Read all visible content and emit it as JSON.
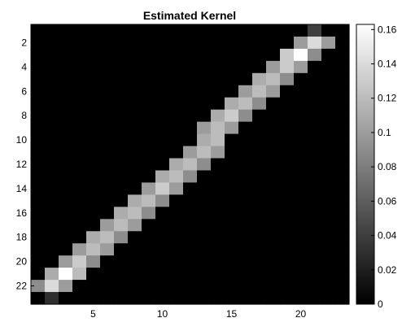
{
  "chart_data": {
    "type": "heatmap",
    "title": "Estimated Kernel",
    "xlabel": "",
    "ylabel": "",
    "x_range": [
      1,
      23
    ],
    "y_range": [
      1,
      23
    ],
    "y_direction": "top-to-bottom",
    "x_ticks": [
      5,
      10,
      15,
      20
    ],
    "y_ticks": [
      2,
      4,
      6,
      8,
      10,
      12,
      14,
      16,
      18,
      20,
      22
    ],
    "colormap": "gray",
    "color_range": [
      0,
      0.163
    ],
    "colorbar": {
      "position": "right",
      "ticks": [
        0,
        0.02,
        0.04,
        0.06,
        0.08,
        0.1,
        0.12,
        0.14,
        0.16
      ],
      "tick_labels": [
        "0",
        "0.02",
        "0.04",
        "0.06",
        "0.08",
        "0.1",
        "0.12",
        "0.14",
        "0.16"
      ]
    },
    "grid": false,
    "values": [
      [
        0,
        0,
        0,
        0,
        0,
        0,
        0,
        0,
        0,
        0,
        0,
        0,
        0,
        0,
        0,
        0,
        0,
        0,
        0,
        0,
        0.04,
        0,
        0
      ],
      [
        0,
        0,
        0,
        0,
        0,
        0,
        0,
        0,
        0,
        0,
        0,
        0,
        0,
        0,
        0,
        0,
        0,
        0,
        0,
        0.1,
        0.14,
        0.1,
        0
      ],
      [
        0,
        0,
        0,
        0,
        0,
        0,
        0,
        0,
        0,
        0,
        0,
        0,
        0,
        0,
        0,
        0,
        0,
        0,
        0.13,
        0.163,
        0.09,
        0,
        0
      ],
      [
        0,
        0,
        0,
        0,
        0,
        0,
        0,
        0,
        0,
        0,
        0,
        0,
        0,
        0,
        0,
        0,
        0,
        0.1,
        0.13,
        0.1,
        0,
        0,
        0
      ],
      [
        0,
        0,
        0,
        0,
        0,
        0,
        0,
        0,
        0,
        0,
        0,
        0,
        0,
        0,
        0,
        0,
        0.11,
        0.12,
        0.09,
        0,
        0,
        0,
        0
      ],
      [
        0,
        0,
        0,
        0,
        0,
        0,
        0,
        0,
        0,
        0,
        0,
        0,
        0,
        0,
        0,
        0.1,
        0.12,
        0.1,
        0,
        0,
        0,
        0,
        0
      ],
      [
        0,
        0,
        0,
        0,
        0,
        0,
        0,
        0,
        0,
        0,
        0,
        0,
        0,
        0,
        0.11,
        0.12,
        0.09,
        0,
        0,
        0,
        0,
        0,
        0
      ],
      [
        0,
        0,
        0,
        0,
        0,
        0,
        0,
        0,
        0,
        0,
        0,
        0,
        0,
        0.11,
        0.13,
        0.09,
        0,
        0,
        0,
        0,
        0,
        0,
        0
      ],
      [
        0,
        0,
        0,
        0,
        0,
        0,
        0,
        0,
        0,
        0,
        0,
        0,
        0.1,
        0.12,
        0.1,
        0,
        0,
        0,
        0,
        0,
        0,
        0,
        0
      ],
      [
        0,
        0,
        0,
        0,
        0,
        0,
        0,
        0,
        0,
        0,
        0,
        0,
        0.11,
        0.12,
        0,
        0,
        0,
        0,
        0,
        0,
        0,
        0,
        0
      ],
      [
        0,
        0,
        0,
        0,
        0,
        0,
        0,
        0,
        0,
        0,
        0,
        0.1,
        0.12,
        0.1,
        0,
        0,
        0,
        0,
        0,
        0,
        0,
        0,
        0
      ],
      [
        0,
        0,
        0,
        0,
        0,
        0,
        0,
        0,
        0,
        0,
        0.11,
        0.12,
        0.09,
        0,
        0,
        0,
        0,
        0,
        0,
        0,
        0,
        0,
        0
      ],
      [
        0,
        0,
        0,
        0,
        0,
        0,
        0,
        0,
        0,
        0.11,
        0.12,
        0.09,
        0,
        0,
        0,
        0,
        0,
        0,
        0,
        0,
        0,
        0,
        0
      ],
      [
        0,
        0,
        0,
        0,
        0,
        0,
        0,
        0,
        0.1,
        0.13,
        0.1,
        0,
        0,
        0,
        0,
        0,
        0,
        0,
        0,
        0,
        0,
        0,
        0
      ],
      [
        0,
        0,
        0,
        0,
        0,
        0,
        0,
        0.11,
        0.12,
        0.09,
        0,
        0,
        0,
        0,
        0,
        0,
        0,
        0,
        0,
        0,
        0,
        0,
        0
      ],
      [
        0,
        0,
        0,
        0,
        0,
        0,
        0.11,
        0.12,
        0.09,
        0,
        0,
        0,
        0,
        0,
        0,
        0,
        0,
        0,
        0,
        0,
        0,
        0,
        0
      ],
      [
        0,
        0,
        0,
        0,
        0,
        0.1,
        0.12,
        0.1,
        0,
        0,
        0,
        0,
        0,
        0,
        0,
        0,
        0,
        0,
        0,
        0,
        0,
        0,
        0
      ],
      [
        0,
        0,
        0,
        0,
        0.11,
        0.12,
        0.09,
        0,
        0,
        0,
        0,
        0,
        0,
        0,
        0,
        0,
        0,
        0,
        0,
        0,
        0,
        0,
        0
      ],
      [
        0,
        0,
        0,
        0.1,
        0.12,
        0.1,
        0,
        0,
        0,
        0,
        0,
        0,
        0,
        0,
        0,
        0,
        0,
        0,
        0,
        0,
        0,
        0,
        0
      ],
      [
        0,
        0,
        0.1,
        0.13,
        0.09,
        0,
        0,
        0,
        0,
        0,
        0,
        0,
        0,
        0,
        0,
        0,
        0,
        0,
        0,
        0,
        0,
        0,
        0
      ],
      [
        0,
        0.11,
        0.163,
        0.12,
        0,
        0,
        0,
        0,
        0,
        0,
        0,
        0,
        0,
        0,
        0,
        0,
        0,
        0,
        0,
        0,
        0,
        0,
        0
      ],
      [
        0.09,
        0.14,
        0.1,
        0,
        0,
        0,
        0,
        0,
        0,
        0,
        0,
        0,
        0,
        0,
        0,
        0,
        0,
        0,
        0,
        0,
        0,
        0,
        0
      ],
      [
        0,
        0.03,
        0,
        0,
        0,
        0,
        0,
        0,
        0,
        0,
        0,
        0,
        0,
        0,
        0,
        0,
        0,
        0,
        0,
        0,
        0,
        0,
        0
      ]
    ]
  }
}
